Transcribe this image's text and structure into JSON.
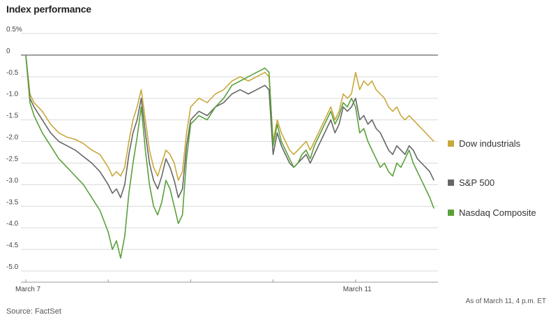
{
  "chart_data": {
    "type": "line",
    "title": "Index performance",
    "source": "Source: FactSet",
    "note": "As of March 11, 4 p.m. ET",
    "ylim": [
      -5.0,
      0.5
    ],
    "y_ticks": [
      "0.5%",
      "0",
      "-0.5",
      "-1.0",
      "-1.5",
      "-2.0",
      "-2.5",
      "-3.0",
      "-3.5",
      "-4.0",
      "-4.5",
      "-5.0"
    ],
    "y_tick_values": [
      0.5,
      0,
      -0.5,
      -1.0,
      -1.5,
      -2.0,
      -2.5,
      -3.0,
      -3.5,
      -4.0,
      -4.5,
      -5.0
    ],
    "x_labels": [
      "March 7",
      "March 11"
    ],
    "x_label_positions": [
      0,
      4
    ],
    "x_range": [
      0,
      5
    ],
    "legend_placement": "right",
    "grid": true,
    "series": [
      {
        "name": "Dow industrials",
        "color": "#c8a83a",
        "points": [
          [
            0,
            0
          ],
          [
            0.05,
            -0.9
          ],
          [
            0.1,
            -1.1
          ],
          [
            0.2,
            -1.3
          ],
          [
            0.3,
            -1.6
          ],
          [
            0.4,
            -1.8
          ],
          [
            0.5,
            -1.9
          ],
          [
            0.6,
            -1.95
          ],
          [
            0.7,
            -2.05
          ],
          [
            0.8,
            -2.2
          ],
          [
            0.9,
            -2.3
          ],
          [
            1.0,
            -2.6
          ],
          [
            1.05,
            -2.8
          ],
          [
            1.1,
            -2.7
          ],
          [
            1.15,
            -2.8
          ],
          [
            1.2,
            -2.6
          ],
          [
            1.25,
            -2.0
          ],
          [
            1.3,
            -1.5
          ],
          [
            1.35,
            -1.2
          ],
          [
            1.4,
            -0.8
          ],
          [
            1.45,
            -1.5
          ],
          [
            1.5,
            -2.2
          ],
          [
            1.55,
            -2.6
          ],
          [
            1.6,
            -2.8
          ],
          [
            1.65,
            -2.5
          ],
          [
            1.7,
            -2.2
          ],
          [
            1.75,
            -2.3
          ],
          [
            1.8,
            -2.5
          ],
          [
            1.85,
            -2.9
          ],
          [
            1.9,
            -2.7
          ],
          [
            1.95,
            -1.8
          ],
          [
            2.0,
            -1.2
          ],
          [
            2.1,
            -1.0
          ],
          [
            2.2,
            -1.1
          ],
          [
            2.3,
            -0.9
          ],
          [
            2.4,
            -0.8
          ],
          [
            2.5,
            -0.6
          ],
          [
            2.6,
            -0.5
          ],
          [
            2.7,
            -0.6
          ],
          [
            2.8,
            -0.5
          ],
          [
            2.9,
            -0.4
          ],
          [
            2.95,
            -0.5
          ],
          [
            3.0,
            -2.0
          ],
          [
            3.05,
            -1.5
          ],
          [
            3.1,
            -1.8
          ],
          [
            3.15,
            -2.0
          ],
          [
            3.2,
            -2.2
          ],
          [
            3.25,
            -2.3
          ],
          [
            3.3,
            -2.2
          ],
          [
            3.35,
            -2.1
          ],
          [
            3.4,
            -2.0
          ],
          [
            3.45,
            -2.2
          ],
          [
            3.5,
            -2.0
          ],
          [
            3.55,
            -1.8
          ],
          [
            3.6,
            -1.6
          ],
          [
            3.65,
            -1.4
          ],
          [
            3.7,
            -1.2
          ],
          [
            3.75,
            -1.5
          ],
          [
            3.8,
            -1.3
          ],
          [
            3.85,
            -0.9
          ],
          [
            3.9,
            -1.0
          ],
          [
            3.95,
            -0.9
          ],
          [
            4.0,
            -0.4
          ],
          [
            4.05,
            -0.8
          ],
          [
            4.1,
            -0.6
          ],
          [
            4.15,
            -0.7
          ],
          [
            4.2,
            -0.6
          ],
          [
            4.25,
            -0.8
          ],
          [
            4.3,
            -0.9
          ],
          [
            4.35,
            -1.0
          ],
          [
            4.4,
            -1.2
          ],
          [
            4.45,
            -1.3
          ],
          [
            4.5,
            -1.2
          ],
          [
            4.55,
            -1.4
          ],
          [
            4.6,
            -1.5
          ],
          [
            4.65,
            -1.4
          ],
          [
            4.7,
            -1.5
          ],
          [
            4.75,
            -1.6
          ],
          [
            4.8,
            -1.7
          ],
          [
            4.85,
            -1.8
          ],
          [
            4.9,
            -1.9
          ],
          [
            4.95,
            -2.0
          ]
        ]
      },
      {
        "name": "S&P 500",
        "color": "#666666",
        "points": [
          [
            0,
            0
          ],
          [
            0.05,
            -1.0
          ],
          [
            0.1,
            -1.2
          ],
          [
            0.2,
            -1.5
          ],
          [
            0.3,
            -1.8
          ],
          [
            0.4,
            -2.0
          ],
          [
            0.5,
            -2.1
          ],
          [
            0.6,
            -2.2
          ],
          [
            0.7,
            -2.35
          ],
          [
            0.8,
            -2.5
          ],
          [
            0.9,
            -2.7
          ],
          [
            1.0,
            -3.0
          ],
          [
            1.05,
            -3.2
          ],
          [
            1.1,
            -3.1
          ],
          [
            1.15,
            -3.3
          ],
          [
            1.2,
            -3.0
          ],
          [
            1.25,
            -2.3
          ],
          [
            1.3,
            -1.8
          ],
          [
            1.35,
            -1.5
          ],
          [
            1.4,
            -1.0
          ],
          [
            1.45,
            -1.8
          ],
          [
            1.5,
            -2.5
          ],
          [
            1.55,
            -2.9
          ],
          [
            1.6,
            -3.1
          ],
          [
            1.65,
            -2.8
          ],
          [
            1.7,
            -2.4
          ],
          [
            1.75,
            -2.6
          ],
          [
            1.8,
            -2.9
          ],
          [
            1.85,
            -3.3
          ],
          [
            1.9,
            -3.1
          ],
          [
            1.95,
            -2.1
          ],
          [
            2.0,
            -1.5
          ],
          [
            2.1,
            -1.3
          ],
          [
            2.2,
            -1.4
          ],
          [
            2.3,
            -1.2
          ],
          [
            2.4,
            -1.1
          ],
          [
            2.5,
            -0.9
          ],
          [
            2.6,
            -0.8
          ],
          [
            2.7,
            -0.9
          ],
          [
            2.8,
            -0.8
          ],
          [
            2.9,
            -0.7
          ],
          [
            2.95,
            -0.8
          ],
          [
            3.0,
            -2.3
          ],
          [
            3.05,
            -1.8
          ],
          [
            3.1,
            -2.1
          ],
          [
            3.15,
            -2.3
          ],
          [
            3.2,
            -2.5
          ],
          [
            3.25,
            -2.6
          ],
          [
            3.3,
            -2.5
          ],
          [
            3.35,
            -2.4
          ],
          [
            3.4,
            -2.3
          ],
          [
            3.45,
            -2.5
          ],
          [
            3.5,
            -2.3
          ],
          [
            3.55,
            -2.1
          ],
          [
            3.6,
            -1.9
          ],
          [
            3.65,
            -1.7
          ],
          [
            3.7,
            -1.5
          ],
          [
            3.75,
            -1.8
          ],
          [
            3.8,
            -1.6
          ],
          [
            3.85,
            -1.2
          ],
          [
            3.9,
            -1.3
          ],
          [
            3.95,
            -1.2
          ],
          [
            4.0,
            -1.0
          ],
          [
            4.05,
            -1.5
          ],
          [
            4.1,
            -1.4
          ],
          [
            4.15,
            -1.6
          ],
          [
            4.2,
            -1.5
          ],
          [
            4.25,
            -1.7
          ],
          [
            4.3,
            -1.8
          ],
          [
            4.35,
            -2.0
          ],
          [
            4.4,
            -2.2
          ],
          [
            4.45,
            -2.3
          ],
          [
            4.5,
            -2.1
          ],
          [
            4.55,
            -2.2
          ],
          [
            4.6,
            -2.3
          ],
          [
            4.65,
            -2.1
          ],
          [
            4.7,
            -2.2
          ],
          [
            4.75,
            -2.4
          ],
          [
            4.8,
            -2.5
          ],
          [
            4.85,
            -2.6
          ],
          [
            4.9,
            -2.7
          ],
          [
            4.95,
            -2.9
          ]
        ]
      },
      {
        "name": "Nasdaq Composite",
        "color": "#5aa03a",
        "points": [
          [
            0,
            0
          ],
          [
            0.05,
            -1.1
          ],
          [
            0.1,
            -1.4
          ],
          [
            0.2,
            -1.8
          ],
          [
            0.3,
            -2.1
          ],
          [
            0.4,
            -2.4
          ],
          [
            0.5,
            -2.6
          ],
          [
            0.6,
            -2.8
          ],
          [
            0.7,
            -3.0
          ],
          [
            0.8,
            -3.3
          ],
          [
            0.9,
            -3.6
          ],
          [
            1.0,
            -4.1
          ],
          [
            1.05,
            -4.5
          ],
          [
            1.1,
            -4.3
          ],
          [
            1.15,
            -4.7
          ],
          [
            1.2,
            -4.2
          ],
          [
            1.25,
            -3.2
          ],
          [
            1.3,
            -2.5
          ],
          [
            1.35,
            -1.9
          ],
          [
            1.4,
            -1.2
          ],
          [
            1.45,
            -2.2
          ],
          [
            1.5,
            -3.0
          ],
          [
            1.55,
            -3.5
          ],
          [
            1.6,
            -3.7
          ],
          [
            1.65,
            -3.4
          ],
          [
            1.7,
            -2.9
          ],
          [
            1.75,
            -3.1
          ],
          [
            1.8,
            -3.5
          ],
          [
            1.85,
            -3.9
          ],
          [
            1.9,
            -3.7
          ],
          [
            1.95,
            -2.4
          ],
          [
            2.0,
            -1.6
          ],
          [
            2.1,
            -1.4
          ],
          [
            2.2,
            -1.5
          ],
          [
            2.3,
            -1.2
          ],
          [
            2.4,
            -1.0
          ],
          [
            2.5,
            -0.7
          ],
          [
            2.6,
            -0.6
          ],
          [
            2.7,
            -0.5
          ],
          [
            2.8,
            -0.4
          ],
          [
            2.9,
            -0.3
          ],
          [
            2.95,
            -0.4
          ],
          [
            3.0,
            -2.1
          ],
          [
            3.05,
            -1.6
          ],
          [
            3.1,
            -2.0
          ],
          [
            3.15,
            -2.2
          ],
          [
            3.2,
            -2.4
          ],
          [
            3.25,
            -2.6
          ],
          [
            3.3,
            -2.5
          ],
          [
            3.35,
            -2.3
          ],
          [
            3.4,
            -2.2
          ],
          [
            3.45,
            -2.4
          ],
          [
            3.5,
            -2.1
          ],
          [
            3.55,
            -1.9
          ],
          [
            3.6,
            -1.7
          ],
          [
            3.65,
            -1.5
          ],
          [
            3.7,
            -1.3
          ],
          [
            3.75,
            -1.6
          ],
          [
            3.8,
            -1.4
          ],
          [
            3.85,
            -1.1
          ],
          [
            3.9,
            -1.2
          ],
          [
            3.95,
            -1.0
          ],
          [
            4.0,
            -1.2
          ],
          [
            4.05,
            -1.8
          ],
          [
            4.1,
            -1.7
          ],
          [
            4.15,
            -2.0
          ],
          [
            4.2,
            -2.2
          ],
          [
            4.25,
            -2.4
          ],
          [
            4.3,
            -2.6
          ],
          [
            4.35,
            -2.5
          ],
          [
            4.4,
            -2.7
          ],
          [
            4.45,
            -2.8
          ],
          [
            4.5,
            -2.5
          ],
          [
            4.55,
            -2.6
          ],
          [
            4.6,
            -2.4
          ],
          [
            4.65,
            -2.2
          ],
          [
            4.7,
            -2.5
          ],
          [
            4.75,
            -2.7
          ],
          [
            4.8,
            -2.9
          ],
          [
            4.85,
            -3.1
          ],
          [
            4.9,
            -3.3
          ],
          [
            4.95,
            -3.55
          ]
        ]
      }
    ]
  }
}
